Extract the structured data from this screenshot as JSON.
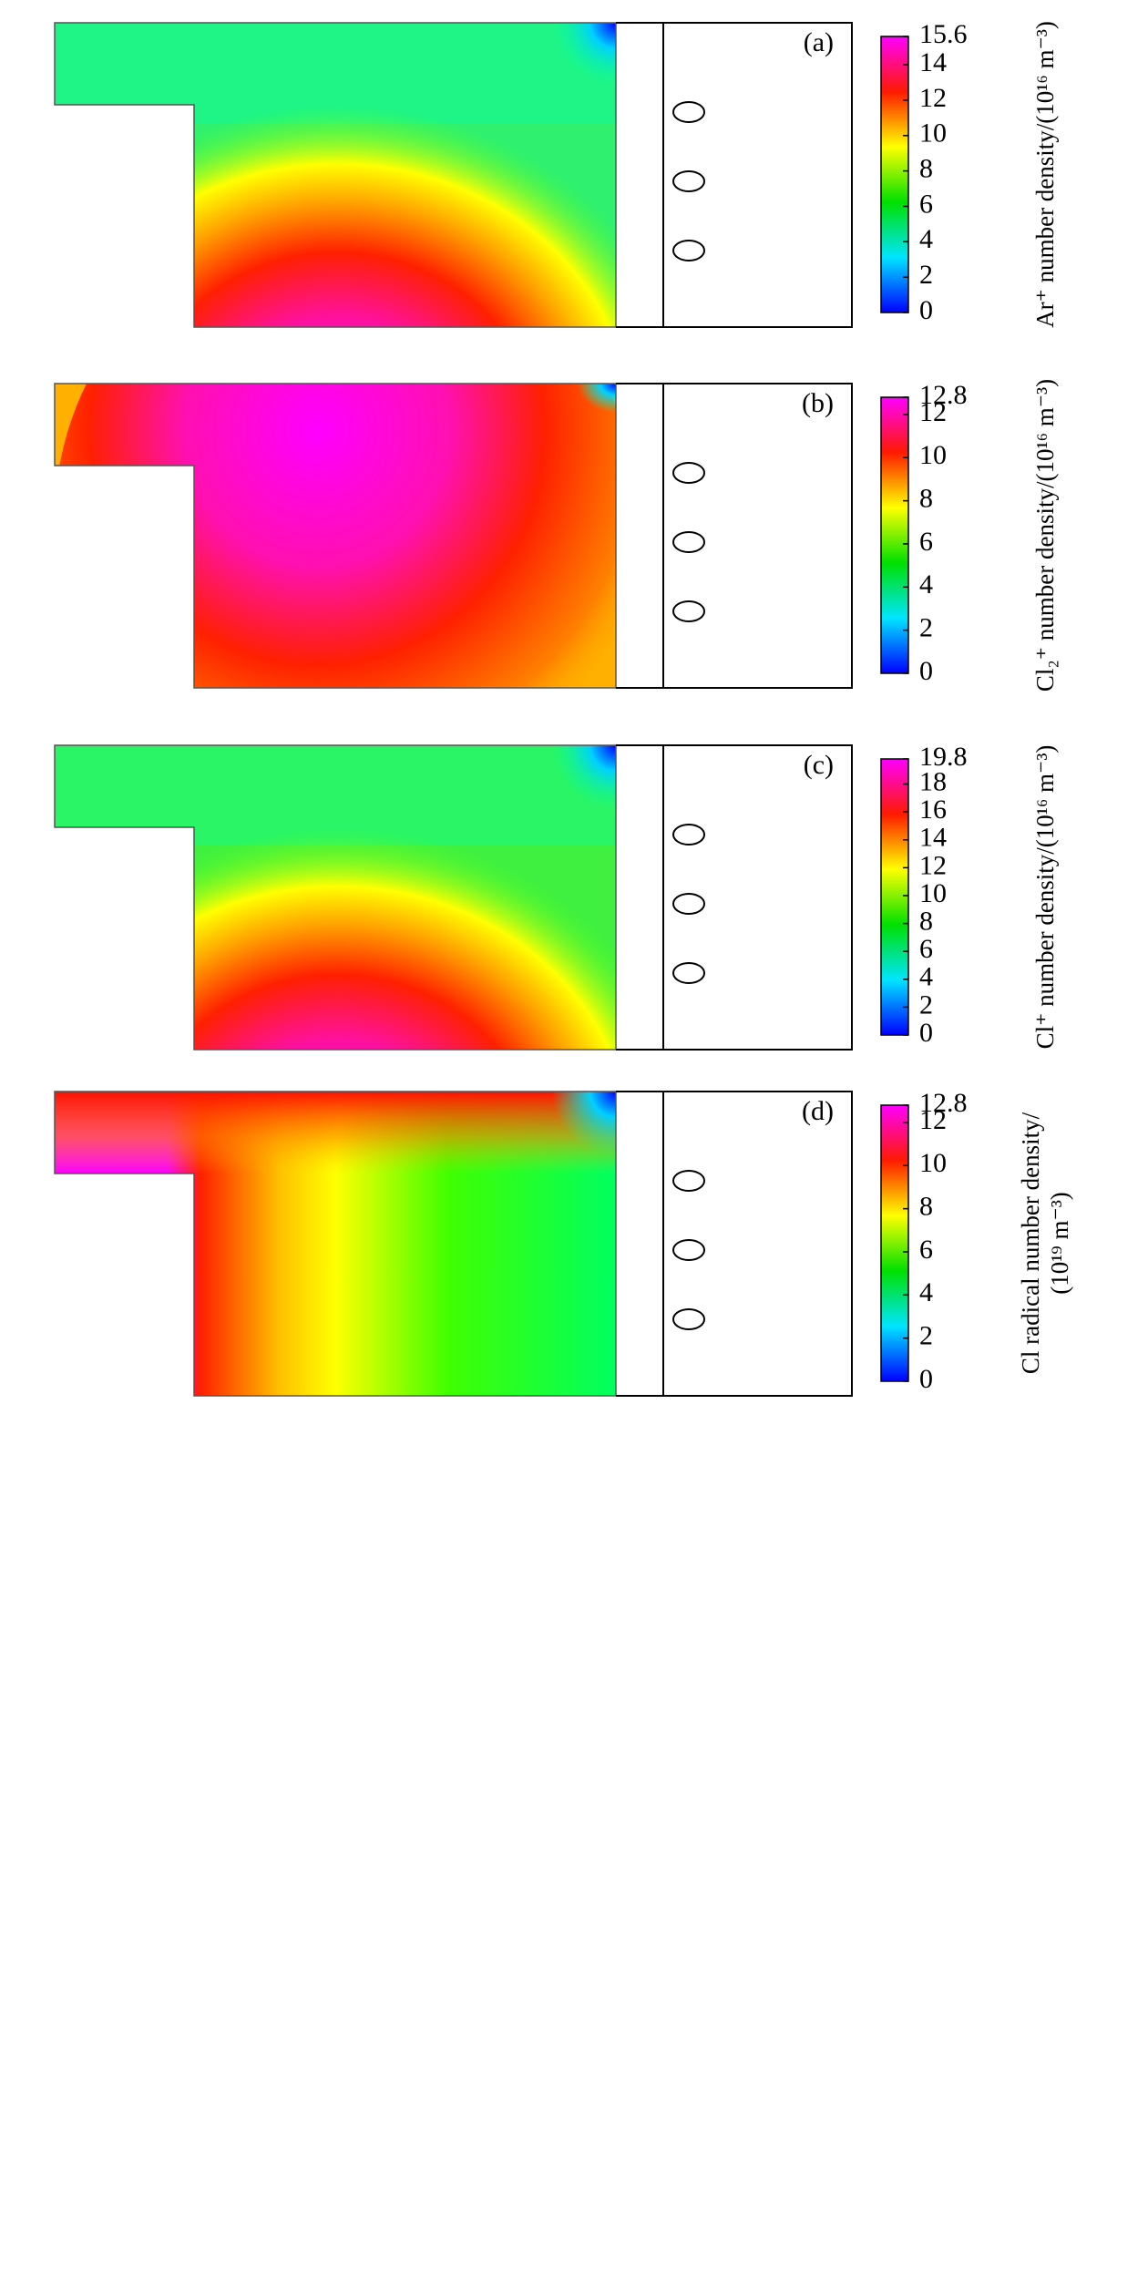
{
  "chart_data": [
    {
      "type": "heatmap",
      "annotation": "(a)",
      "ylabel": [
        "Ar⁺ number density/(10¹⁶ m⁻³)"
      ],
      "ylim": [
        0,
        15.6
      ],
      "yticks": [
        0,
        2,
        4,
        6,
        8,
        10,
        12,
        14,
        15.6
      ]
    },
    {
      "type": "heatmap",
      "annotation": "(b)",
      "ylabel": [
        "Cl₂⁺ number density/(10¹⁶ m⁻³)"
      ],
      "ylim": [
        0,
        12.8
      ],
      "yticks": [
        0,
        2,
        4,
        6,
        8,
        10,
        12,
        12.8
      ]
    },
    {
      "type": "heatmap",
      "annotation": "(c)",
      "ylabel": [
        "Cl⁺ number density/(10¹⁶ m⁻³)"
      ],
      "ylim": [
        0,
        19.8
      ],
      "yticks": [
        0,
        2,
        4,
        6,
        8,
        10,
        12,
        14,
        16,
        18,
        19.8
      ]
    },
    {
      "type": "heatmap",
      "annotation": "(d)",
      "ylabel": [
        "Cl radical number density/",
        "(10¹⁹ m⁻³)"
      ],
      "ylim": [
        0,
        12.8
      ],
      "yticks": [
        0,
        2,
        4,
        6,
        8,
        10,
        12,
        12.8
      ]
    }
  ]
}
